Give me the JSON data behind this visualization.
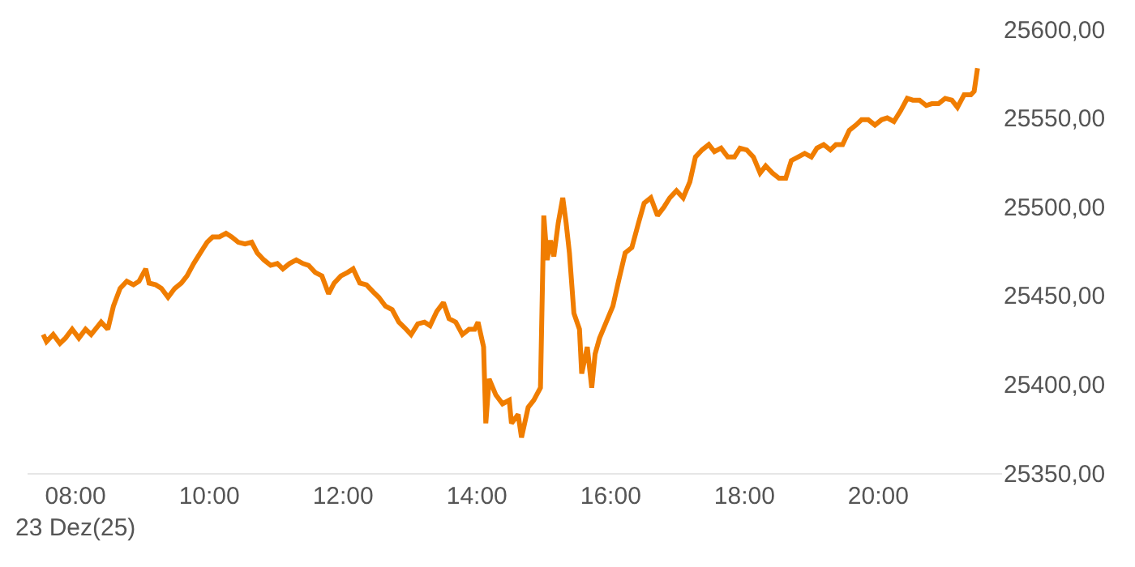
{
  "chart_data": {
    "type": "line",
    "x": [
      "--12-23T07:31",
      "--12-23T07:34",
      "--12-23T07:40",
      "--12-23T07:46",
      "--12-23T07:51",
      "--12-23T07:57",
      "--12-23T08:03",
      "--12-23T08:09",
      "--12-23T08:14",
      "--12-23T08:23",
      "--12-23T08:29",
      "--12-23T08:34",
      "--12-23T08:40",
      "--12-23T08:46",
      "--12-23T08:52",
      "--12-23T08:57",
      "--12-23T09:03",
      "--12-23T09:06",
      "--12-23T09:12",
      "--12-23T09:17",
      "--12-23T09:23",
      "--12-23T09:29",
      "--12-23T09:35",
      "--12-23T09:40",
      "--12-23T09:46",
      "--12-23T09:52",
      "--12-23T09:58",
      "--12-23T10:03",
      "--12-23T10:09",
      "--12-23T10:15",
      "--12-23T10:20",
      "--12-23T10:26",
      "--12-23T10:32",
      "--12-23T10:38",
      "--12-23T10:43",
      "--12-23T10:49",
      "--12-23T10:55",
      "--12-23T11:01",
      "--12-23T11:06",
      "--12-23T11:12",
      "--12-23T11:18",
      "--12-23T11:24",
      "--12-23T11:29",
      "--12-23T11:35",
      "--12-23T11:41",
      "--12-23T11:47",
      "--12-23T11:52",
      "--12-23T11:58",
      "--12-23T12:04",
      "--12-23T12:09",
      "--12-23T12:15",
      "--12-23T12:21",
      "--12-23T12:27",
      "--12-23T12:32",
      "--12-23T12:38",
      "--12-23T12:44",
      "--12-23T12:50",
      "--12-23T12:55",
      "--12-23T13:01",
      "--12-23T13:07",
      "--12-23T13:13",
      "--12-23T13:18",
      "--12-23T13:24",
      "--12-23T13:30",
      "--12-23T13:35",
      "--12-23T13:41",
      "--12-23T13:47",
      "--12-23T13:53",
      "--12-23T13:58",
      "--12-23T14:01",
      "--12-23T14:06",
      "--12-23T14:08",
      "--12-23T14:11",
      "--12-23T14:17",
      "--12-23T14:23",
      "--12-23T14:29",
      "--12-23T14:31",
      "--12-23T14:37",
      "--12-23T14:40",
      "--12-23T14:46",
      "--12-23T14:51",
      "--12-23T14:57",
      "--12-23T15:00",
      "--12-23T15:03",
      "--12-23T15:06",
      "--12-23T15:09",
      "--12-23T15:13",
      "--12-23T15:17",
      "--12-23T15:20",
      "--12-23T15:23",
      "--12-23T15:27",
      "--12-23T15:32",
      "--12-23T15:34",
      "--12-23T15:39",
      "--12-23T15:43",
      "--12-23T15:46",
      "--12-23T15:50",
      "--12-23T15:56",
      "--12-23T16:02",
      "--12-23T16:07",
      "--12-23T16:13",
      "--12-23T16:19",
      "--12-23T16:25",
      "--12-23T16:30",
      "--12-23T16:36",
      "--12-23T16:42",
      "--12-23T16:48",
      "--12-23T16:53",
      "--12-23T16:59",
      "--12-23T17:05",
      "--12-23T17:11",
      "--12-23T17:16",
      "--12-23T17:22",
      "--12-23T17:28",
      "--12-23T17:33",
      "--12-23T17:39",
      "--12-23T17:45",
      "--12-23T17:51",
      "--12-23T17:56",
      "--12-23T18:02",
      "--12-23T18:08",
      "--12-23T18:14",
      "--12-23T18:19",
      "--12-23T18:25",
      "--12-23T18:31",
      "--12-23T18:37",
      "--12-23T18:42",
      "--12-23T18:48",
      "--12-23T18:54",
      "--12-23T19:00",
      "--12-23T19:05",
      "--12-23T19:11",
      "--12-23T19:17",
      "--12-23T19:22",
      "--12-23T19:28",
      "--12-23T19:34",
      "--12-23T19:40",
      "--12-23T19:45",
      "--12-23T19:51",
      "--12-23T19:57",
      "--12-23T20:03",
      "--12-23T20:08",
      "--12-23T20:14",
      "--12-23T20:20",
      "--12-23T20:26",
      "--12-23T20:31",
      "--12-23T20:37",
      "--12-23T20:43",
      "--12-23T20:48",
      "--12-23T20:54",
      "--12-23T21:00",
      "--12-23T21:06",
      "--12-23T21:11",
      "--12-23T21:17",
      "--12-23T21:23",
      "--12-23T21:26",
      "--12-23T21:29"
    ],
    "series": [
      {
        "color": "#f07d00",
        "values": [
          25428,
          25424,
          25428,
          25423,
          25426,
          25431,
          25426,
          25431,
          25428,
          25435,
          25431,
          25444,
          25454,
          25458,
          25456,
          25458,
          25465,
          25457,
          25456,
          25454,
          25449,
          25454,
          25457,
          25461,
          25468,
          25474,
          25480,
          25483,
          25483,
          25485,
          25483,
          25480,
          25479,
          25480,
          25474,
          25470,
          25467,
          25468,
          25465,
          25468,
          25470,
          25468,
          25467,
          25463,
          25461,
          25451,
          25457,
          25461,
          25463,
          25465,
          25457,
          25456,
          25452,
          25449,
          25444,
          25442,
          25435,
          25432,
          25428,
          25434,
          25435,
          25433,
          25441,
          25446,
          25437,
          25435,
          25428,
          25431,
          25431,
          25435,
          25421,
          25378,
          25403,
          25394,
          25389,
          25391,
          25378,
          25383,
          25370,
          25387,
          25391,
          25398,
          25495,
          25470,
          25481,
          25472,
          25491,
          25505,
          25491,
          25474,
          25440,
          25431,
          25406,
          25421,
          25398,
          25417,
          25426,
          25435,
          25444,
          25458,
          25474,
          25477,
          25491,
          25502,
          25505,
          25495,
          25500,
          25505,
          25509,
          25505,
          25514,
          25528,
          25532,
          25535,
          25531,
          25533,
          25528,
          25528,
          25533,
          25532,
          25528,
          25519,
          25523,
          25519,
          25516,
          25516,
          25526,
          25528,
          25530,
          25528,
          25533,
          25535,
          25532,
          25535,
          25535,
          25543,
          25546,
          25549,
          25549,
          25546,
          25549,
          25550,
          25548,
          25554,
          25561,
          25560,
          25560,
          25557,
          25558,
          25558,
          25561,
          25560,
          25556,
          25563,
          25563,
          25565,
          25578
        ]
      }
    ],
    "xticks": [
      {
        "value": "--12-23T08:00",
        "label": "08:00\n23 Dez(25)"
      },
      {
        "value": "--12-23T10:00",
        "label": "10:00"
      },
      {
        "value": "--12-23T12:00",
        "label": "12:00"
      },
      {
        "value": "--12-23T14:00",
        "label": "14:00"
      },
      {
        "value": "--12-23T16:00",
        "label": "16:00"
      },
      {
        "value": "--12-23T18:00",
        "label": "18:00"
      },
      {
        "value": "--12-23T20:00",
        "label": "20:00"
      }
    ],
    "xlim": [
      "--12-23T07:17",
      "--12-23T21:51"
    ],
    "ylim": [
      25350,
      25600
    ],
    "yticks": [
      {
        "value": 25350,
        "label": "25350,00"
      },
      {
        "value": 25400,
        "label": "25400,00"
      },
      {
        "value": 25450,
        "label": "25450,00"
      },
      {
        "value": 25500,
        "label": "25500,00"
      },
      {
        "value": 25550,
        "label": "25550,00"
      },
      {
        "value": 25600,
        "label": "25600,00"
      }
    ],
    "marker": "none",
    "line_style": "solid"
  }
}
